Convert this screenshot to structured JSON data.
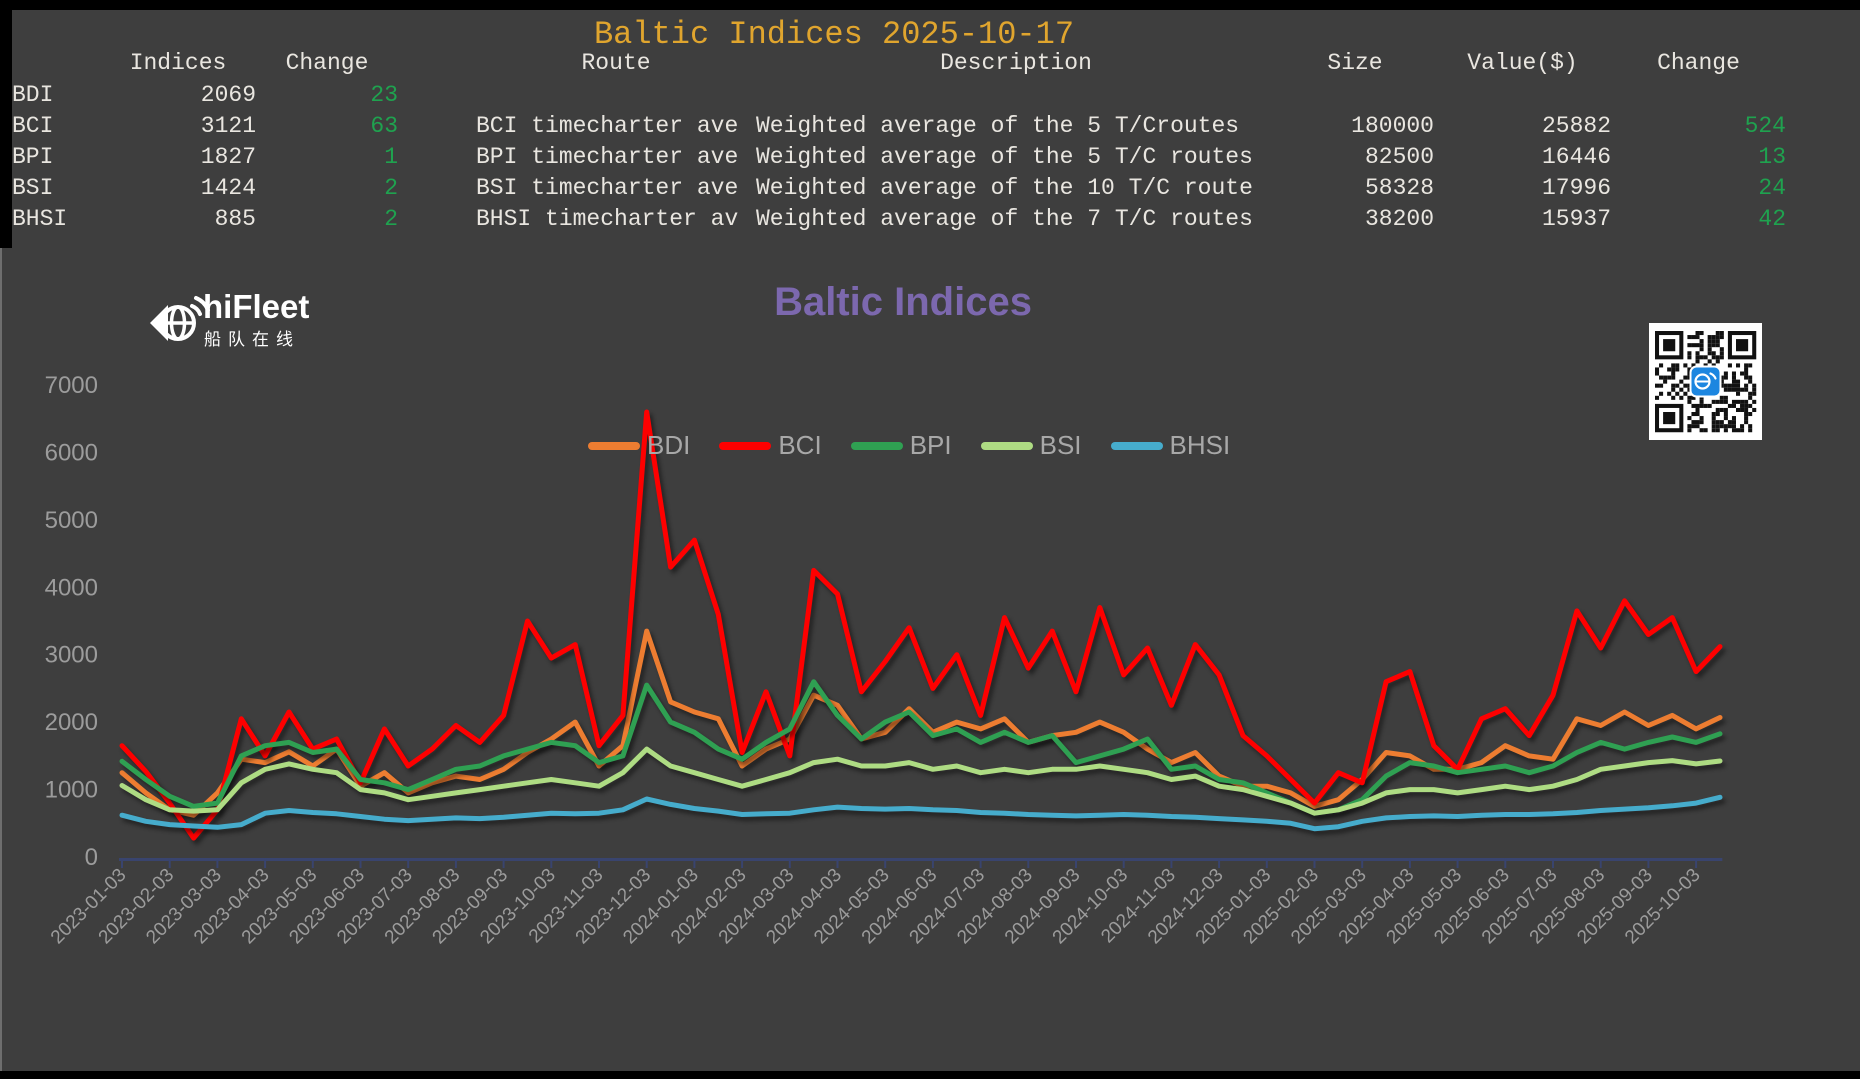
{
  "table": {
    "title": "Baltic Indices 2025-10-17",
    "title_color": "#E0A52E",
    "positive_color": "#1FA24F",
    "columns": [
      "Indices",
      "Change",
      "Route",
      "Description",
      "Size",
      "Value($)",
      "Change"
    ],
    "rows": [
      {
        "index": "BDI",
        "value": "2069",
        "change": "23",
        "route": "",
        "description": "",
        "size": "",
        "value_usd": "",
        "change2": ""
      },
      {
        "index": "BCI",
        "value": "3121",
        "change": "63",
        "route": "BCI timecharter ave",
        "description": "Weighted average of the 5 T/Croutes",
        "size": "180000",
        "value_usd": "25882",
        "change2": "524"
      },
      {
        "index": "BPI",
        "value": "1827",
        "change": "1",
        "route": "BPI timecharter ave",
        "description": "Weighted average of the 5 T/C routes",
        "size": "82500",
        "value_usd": "16446",
        "change2": "13"
      },
      {
        "index": "BSI",
        "value": "1424",
        "change": "2",
        "route": "BSI timecharter ave",
        "description": "Weighted average of the 10 T/C route",
        "size": "58328",
        "value_usd": "17996",
        "change2": "24"
      },
      {
        "index": "BHSI",
        "value": "885",
        "change": "2",
        "route": "BHSI timecharter av",
        "description": "Weighted average of the 7 T/C routes",
        "size": "38200",
        "value_usd": "15937",
        "change2": "42"
      }
    ]
  },
  "branding": {
    "logo_text": "hiFleet",
    "logo_subtext": "船队在线"
  },
  "chart_data": {
    "type": "line",
    "title": "Baltic Indices",
    "title_color": "#7C68AE",
    "xlabel": "",
    "ylabel": "",
    "ylim": [
      0,
      7000
    ],
    "y_ticks": [
      0,
      1000,
      2000,
      3000,
      4000,
      5000,
      6000,
      7000
    ],
    "grid": false,
    "legend_position": "top-center",
    "axis_color": "#39446E",
    "tick_label_color": "#9C9C9C",
    "x_tick_labels": [
      "2023-01-03",
      "2023-02-03",
      "2023-03-03",
      "2023-04-03",
      "2023-05-03",
      "2023-06-03",
      "2023-07-03",
      "2023-08-03",
      "2023-09-03",
      "2023-10-03",
      "2023-11-03",
      "2023-12-03",
      "2024-01-03",
      "2024-02-03",
      "2024-03-03",
      "2024-04-03",
      "2024-05-03",
      "2024-06-03",
      "2024-07-03",
      "2024-08-03",
      "2024-09-03",
      "2024-10-03",
      "2024-11-03",
      "2024-12-03",
      "2025-01-03",
      "2025-02-03",
      "2025-03-03",
      "2025-04-03",
      "2025-05-03",
      "2025-06-03",
      "2025-07-03",
      "2025-08-03",
      "2025-09-03",
      "2025-10-03"
    ],
    "x_start_month": 0,
    "x_step_months": 0.5,
    "series": [
      {
        "name": "BDI",
        "color": "#ED7D31",
        "values": [
          1250,
          950,
          700,
          620,
          950,
          1450,
          1400,
          1560,
          1350,
          1600,
          1050,
          1250,
          950,
          1100,
          1200,
          1150,
          1300,
          1550,
          1750,
          2000,
          1350,
          1650,
          3350,
          2300,
          2150,
          2050,
          1350,
          1600,
          1750,
          2400,
          2250,
          1750,
          1850,
          2200,
          1850,
          2000,
          1900,
          2050,
          1700,
          1800,
          1850,
          2000,
          1850,
          1600,
          1400,
          1550,
          1200,
          1050,
          1050,
          950,
          750,
          850,
          1150,
          1550,
          1500,
          1300,
          1300,
          1400,
          1650,
          1500,
          1450,
          2050,
          1950,
          2150,
          1950,
          2100,
          1900,
          2069
        ]
      },
      {
        "name": "BCI",
        "color": "#FE0000",
        "values": [
          1650,
          1270,
          800,
          280,
          700,
          2050,
          1500,
          2150,
          1600,
          1750,
          1100,
          1900,
          1350,
          1600,
          1950,
          1700,
          2100,
          3500,
          2950,
          3150,
          1650,
          2100,
          6600,
          4300,
          4700,
          3600,
          1550,
          2450,
          1500,
          4250,
          3900,
          2450,
          2900,
          3400,
          2500,
          3000,
          2100,
          3550,
          2800,
          3350,
          2450,
          3700,
          2700,
          3100,
          2250,
          3150,
          2700,
          1800,
          1500,
          1150,
          800,
          1250,
          1100,
          2600,
          2750,
          1650,
          1300,
          2050,
          2200,
          1800,
          2400,
          3650,
          3100,
          3800,
          3300,
          3550,
          2750,
          3121
        ]
      },
      {
        "name": "BPI",
        "color": "#2FA052",
        "values": [
          1420,
          1150,
          900,
          750,
          800,
          1500,
          1650,
          1700,
          1550,
          1600,
          1150,
          1100,
          1000,
          1150,
          1300,
          1350,
          1500,
          1600,
          1700,
          1650,
          1400,
          1500,
          2550,
          2000,
          1850,
          1600,
          1450,
          1700,
          1900,
          2600,
          2100,
          1750,
          2000,
          2150,
          1800,
          1900,
          1700,
          1850,
          1700,
          1800,
          1400,
          1500,
          1600,
          1750,
          1300,
          1350,
          1150,
          1100,
          950,
          800,
          650,
          700,
          850,
          1200,
          1400,
          1350,
          1250,
          1300,
          1350,
          1250,
          1350,
          1550,
          1700,
          1600,
          1700,
          1780,
          1700,
          1827
        ]
      },
      {
        "name": "BSI",
        "color": "#AEDC83",
        "values": [
          1060,
          850,
          700,
          680,
          700,
          1100,
          1300,
          1380,
          1300,
          1250,
          1000,
          950,
          850,
          900,
          950,
          1000,
          1050,
          1100,
          1150,
          1100,
          1050,
          1250,
          1600,
          1350,
          1250,
          1150,
          1050,
          1150,
          1250,
          1400,
          1450,
          1350,
          1350,
          1400,
          1300,
          1350,
          1250,
          1300,
          1250,
          1300,
          1300,
          1350,
          1300,
          1250,
          1150,
          1200,
          1050,
          1000,
          900,
          800,
          650,
          700,
          800,
          950,
          1000,
          1000,
          950,
          1000,
          1050,
          1000,
          1050,
          1150,
          1300,
          1350,
          1400,
          1430,
          1380,
          1424
        ]
      },
      {
        "name": "BHSI",
        "color": "#46ACCC",
        "values": [
          620,
          530,
          480,
          460,
          440,
          480,
          650,
          690,
          660,
          640,
          600,
          560,
          540,
          560,
          580,
          570,
          590,
          620,
          650,
          640,
          650,
          700,
          860,
          780,
          720,
          680,
          630,
          640,
          650,
          700,
          740,
          720,
          710,
          720,
          700,
          690,
          660,
          650,
          630,
          620,
          610,
          620,
          630,
          620,
          600,
          590,
          570,
          550,
          530,
          500,
          420,
          450,
          530,
          580,
          600,
          610,
          600,
          620,
          630,
          630,
          640,
          660,
          690,
          710,
          730,
          760,
          800,
          885
        ]
      }
    ]
  }
}
